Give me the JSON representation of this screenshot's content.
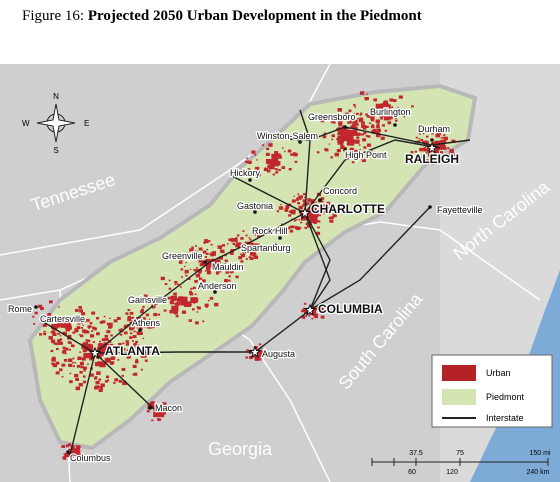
{
  "title": {
    "prefix": "Figure 16:",
    "main": "Projected 2050 Urban Development in the Piedmont"
  },
  "compass": {
    "n": "N",
    "s": "S",
    "e": "E",
    "w": "W"
  },
  "states": [
    "Tennessee",
    "North Carolina",
    "South Carolina",
    "Georgia"
  ],
  "cities": [
    "Greensboro",
    "Burlington",
    "Winston-Salem",
    "Durham",
    "High Point",
    "RALEIGH",
    "Hickory",
    "Concord",
    "Gastonia",
    "CHARLOTTE",
    "Fayetteville",
    "Rock Hill",
    "Spartanburg",
    "Greenville",
    "Mauldin",
    "Anderson",
    "COLUMBIA",
    "Gainsville",
    "Rome",
    "Cartersville",
    "Athens",
    "ATLANTA",
    "Augusta",
    "Macon",
    "Columbus"
  ],
  "legend": [
    "Urban",
    "Piedmont",
    "Interstate"
  ],
  "scale": {
    "miles": [
      "37.5",
      "75",
      "150 mi"
    ],
    "km": [
      "60",
      "120",
      "240 km"
    ]
  }
}
